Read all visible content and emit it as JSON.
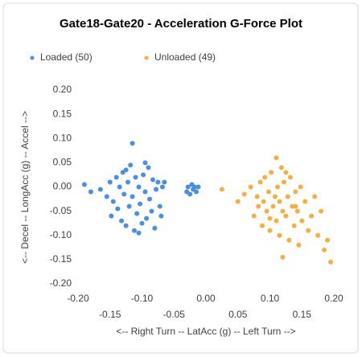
{
  "chart_data": {
    "type": "scatter",
    "title": "Gate18-Gate20 - Acceleration G-Force Plot",
    "xlabel": "<-- Right Turn -- LatAcc (g) -- Left Turn -->",
    "ylabel": "<-- Decel -- LongAcc (g) -- Accel -->",
    "legend": "top-left",
    "xlim": [
      -0.2,
      0.2
    ],
    "ylim": [
      -0.2,
      0.2
    ],
    "xticks": [
      {
        "value": -0.2,
        "label": "-0.20"
      },
      {
        "value": -0.15,
        "label": "-0.15"
      },
      {
        "value": -0.1,
        "label": "-0.10"
      },
      {
        "value": -0.05,
        "label": "-0.05"
      },
      {
        "value": 0,
        "label": "0.00"
      },
      {
        "value": 0.05,
        "label": "0.05"
      },
      {
        "value": 0.1,
        "label": "0.10"
      },
      {
        "value": 0.15,
        "label": "0.15"
      },
      {
        "value": 0.2,
        "label": "0.20"
      }
    ],
    "yticks": [
      {
        "value": 0.2,
        "label": "0.20"
      },
      {
        "value": 0.15,
        "label": "0.15"
      },
      {
        "value": 0.1,
        "label": "0.10"
      },
      {
        "value": 0.05,
        "label": "0.05"
      },
      {
        "value": 0,
        "label": "0.00"
      },
      {
        "value": -0.05,
        "label": "-0.05"
      },
      {
        "value": -0.1,
        "label": "-0.10"
      },
      {
        "value": -0.15,
        "label": "-0.15"
      },
      {
        "value": -0.2,
        "label": "-0.20"
      }
    ],
    "series": [
      {
        "name": "Loaded (50)",
        "color": "#4a8fe0",
        "x": [
          -0.19,
          -0.18,
          -0.165,
          -0.155,
          -0.15,
          -0.148,
          -0.145,
          -0.14,
          -0.138,
          -0.135,
          -0.132,
          -0.13,
          -0.128,
          -0.125,
          -0.122,
          -0.12,
          -0.118,
          -0.115,
          -0.115,
          -0.112,
          -0.11,
          -0.108,
          -0.105,
          -0.103,
          -0.1,
          -0.098,
          -0.095,
          -0.093,
          -0.09,
          -0.088,
          -0.085,
          -0.083,
          -0.08,
          -0.078,
          -0.075,
          -0.072,
          -0.07,
          -0.068,
          -0.065,
          -0.03,
          -0.028,
          -0.025,
          -0.022,
          -0.02,
          -0.018,
          -0.015,
          -0.012,
          -0.125,
          -0.105,
          -0.095
        ],
        "values": [
          0.005,
          -0.01,
          -0.005,
          -0.02,
          0.01,
          -0.06,
          -0.03,
          0.02,
          -0.045,
          0.0,
          -0.07,
          0.03,
          -0.015,
          -0.08,
          0.01,
          -0.04,
          0.045,
          0.09,
          -0.02,
          -0.09,
          0.02,
          -0.055,
          0.0,
          -0.035,
          -0.075,
          0.025,
          -0.01,
          -0.065,
          0.04,
          -0.025,
          -0.05,
          0.015,
          -0.085,
          -0.005,
          0.01,
          -0.04,
          -0.06,
          0.0,
          0.01,
          -0.01,
          0.0,
          -0.015,
          0.005,
          -0.005,
          0.0,
          -0.01,
          0.0,
          0.035,
          -0.095,
          0.05
        ]
      },
      {
        "name": "Unloaded (49)",
        "color": "#f4b03e",
        "x": [
          0.025,
          0.05,
          0.06,
          0.07,
          0.075,
          0.08,
          0.082,
          0.085,
          0.088,
          0.09,
          0.092,
          0.095,
          0.098,
          0.1,
          0.102,
          0.105,
          0.108,
          0.11,
          0.11,
          0.112,
          0.115,
          0.115,
          0.118,
          0.12,
          0.12,
          0.122,
          0.125,
          0.128,
          0.13,
          0.132,
          0.135,
          0.138,
          0.14,
          0.143,
          0.145,
          0.148,
          0.15,
          0.155,
          0.16,
          0.165,
          0.17,
          0.175,
          0.18,
          0.185,
          0.19,
          0.195,
          0.1,
          0.125,
          0.14
        ],
        "values": [
          -0.005,
          -0.03,
          -0.015,
          0.0,
          -0.06,
          -0.02,
          -0.04,
          0.01,
          -0.08,
          -0.03,
          0.02,
          -0.05,
          -0.01,
          -0.09,
          0.03,
          -0.04,
          -0.02,
          0.06,
          -0.07,
          0.0,
          -0.03,
          -0.1,
          0.04,
          -0.145,
          -0.05,
          0.01,
          -0.06,
          -0.02,
          -0.11,
          0.02,
          -0.04,
          -0.08,
          -0.01,
          -0.05,
          -0.12,
          0.0,
          -0.07,
          -0.03,
          -0.09,
          -0.06,
          -0.02,
          -0.1,
          -0.05,
          -0.13,
          -0.11,
          -0.155,
          -0.065,
          0.03,
          -0.04
        ]
      }
    ]
  }
}
